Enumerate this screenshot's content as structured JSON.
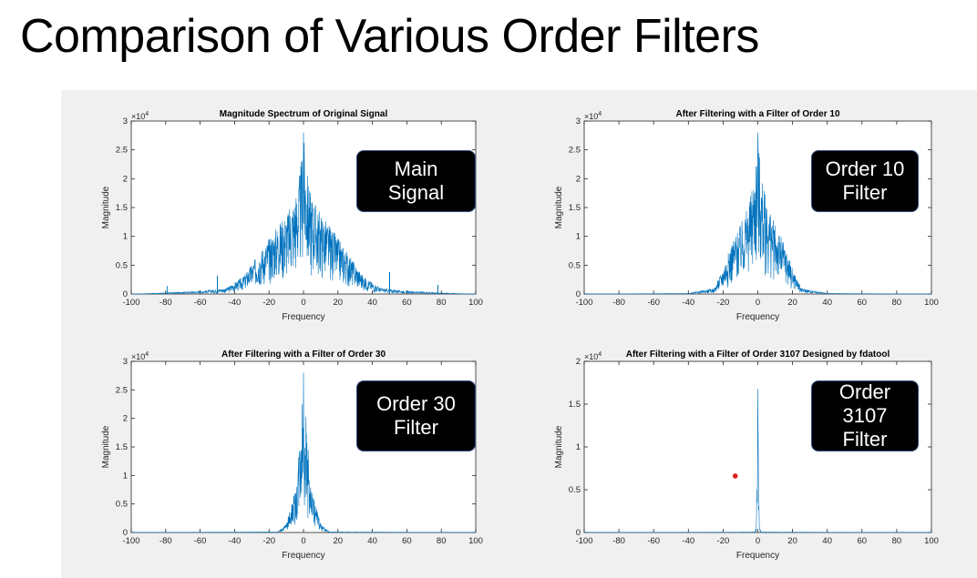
{
  "slide": {
    "title": "Comparison of Various Order Filters"
  },
  "colors": {
    "panel_bg": "#f0f0f0",
    "line": "#0072bd",
    "callout_bg": "#000000",
    "callout_border": "#2f4f7f",
    "marker": "#e02020"
  },
  "callouts": [
    {
      "text": "Main\nSignal"
    },
    {
      "text": "Order 10\nFilter"
    },
    {
      "text": "Order 30\nFilter"
    },
    {
      "text": "Order\n3107\nFilter"
    }
  ],
  "chart_data": [
    {
      "type": "line",
      "title": "Magnitude Spectrum of Original Signal",
      "xlabel": "Frequency",
      "ylabel": "Magnitude",
      "xlim": [
        -100,
        100
      ],
      "ylim": [
        0,
        3
      ],
      "y_exponent_label": "×10",
      "y_exponent": "4",
      "xticks": [
        "-100",
        "-80",
        "-60",
        "-40",
        "-20",
        "0",
        "20",
        "40",
        "60",
        "80",
        "100"
      ],
      "yticks": [
        "0",
        "0.5",
        "1",
        "1.5",
        "2",
        "2.5",
        "3"
      ],
      "series": [
        {
          "envelope": {
            "x": [
              -100,
              -88,
              -60,
              -45,
              -35,
              -25,
              -15,
              -8,
              -3,
              -1,
              0,
              1,
              3,
              8,
              15,
              25,
              35,
              45,
              60,
              88,
              100
            ],
            "y": [
              0,
              0.01,
              0.05,
              0.1,
              0.3,
              0.75,
              1.2,
              1.5,
              1.9,
              2.4,
              2.8,
              2.4,
              1.9,
              1.5,
              1.2,
              0.75,
              0.3,
              0.1,
              0.05,
              0.01,
              0
            ]
          },
          "spikes": [
            {
              "x": -79,
              "y": 0.14
            },
            {
              "x": -50,
              "y": 0.32
            },
            {
              "x": 50,
              "y": 0.38
            },
            {
              "x": 78,
              "y": 0.16
            }
          ]
        }
      ]
    },
    {
      "type": "line",
      "title": "After Filtering with a Filter of Order 10",
      "xlabel": "Frequency",
      "ylabel": "Magnitude",
      "xlim": [
        -100,
        100
      ],
      "ylim": [
        0,
        3
      ],
      "y_exponent_label": "×10",
      "y_exponent": "4",
      "xticks": [
        "-100",
        "-80",
        "-60",
        "-40",
        "-20",
        "0",
        "20",
        "40",
        "60",
        "80",
        "100"
      ],
      "yticks": [
        "0",
        "0.5",
        "1",
        "1.5",
        "2",
        "2.5",
        "3"
      ],
      "series": [
        {
          "envelope": {
            "x": [
              -100,
              -40,
              -25,
              -20,
              -15,
              -10,
              -5,
              -2,
              0,
              2,
              5,
              10,
              15,
              20,
              25,
              40,
              100
            ],
            "y": [
              0,
              0.01,
              0.1,
              0.45,
              0.9,
              1.2,
              1.6,
              2.1,
              2.8,
              2.1,
              1.6,
              1.2,
              0.9,
              0.45,
              0.1,
              0.01,
              0
            ]
          },
          "spikes": []
        }
      ]
    },
    {
      "type": "line",
      "title": "After Filtering with a Filter of Order 30",
      "xlabel": "Frequency",
      "ylabel": "Magnitude",
      "xlim": [
        -100,
        100
      ],
      "ylim": [
        0,
        3
      ],
      "y_exponent_label": "×10",
      "y_exponent": "4",
      "xticks": [
        "-100",
        "-80",
        "-60",
        "-40",
        "-20",
        "0",
        "20",
        "40",
        "60",
        "80",
        "100"
      ],
      "yticks": [
        "0",
        "0.5",
        "1",
        "1.5",
        "2",
        "2.5",
        "3"
      ],
      "series": [
        {
          "envelope": {
            "x": [
              -100,
              -15,
              -10,
              -7,
              -4,
              -2,
              0,
              2,
              4,
              7,
              10,
              15,
              100
            ],
            "y": [
              0,
              0.01,
              0.15,
              0.5,
              0.85,
              1.8,
              2.8,
              1.8,
              0.85,
              0.5,
              0.15,
              0.01,
              0
            ]
          },
          "spikes": []
        }
      ]
    },
    {
      "type": "line",
      "title": "After Filtering with a Filter of Order 3107 Designed by fdatool",
      "xlabel": "Frequency",
      "ylabel": "Magnitude",
      "xlim": [
        -100,
        100
      ],
      "ylim": [
        0,
        2
      ],
      "y_exponent_label": "×10",
      "y_exponent": "4",
      "xticks": [
        "-100",
        "-80",
        "-60",
        "-40",
        "-20",
        "0",
        "20",
        "40",
        "60",
        "80",
        "100"
      ],
      "yticks": [
        "0",
        "0.5",
        "1",
        "1.5",
        "2"
      ],
      "series": [
        {
          "envelope": {
            "x": [
              -100,
              -2,
              -1,
              -0.5,
              0,
              0.5,
              1,
              2,
              100
            ],
            "y": [
              0,
              0.005,
              0.05,
              0.45,
              1.68,
              0.45,
              0.05,
              0.005,
              0
            ]
          },
          "spikes": []
        }
      ],
      "marker": {
        "x": -13,
        "y": 0.66
      }
    }
  ]
}
